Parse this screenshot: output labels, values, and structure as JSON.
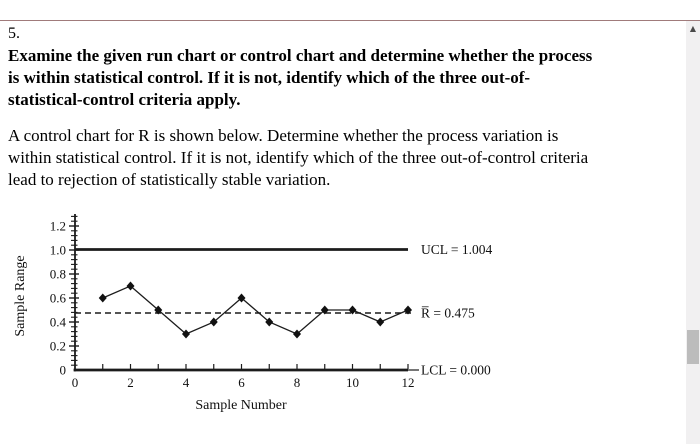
{
  "page": {
    "question_number": "5.",
    "instruction_lines": [
      "Examine the given run chart or control chart and determine whether the process",
      "is within statistical control. If it is not, identify which of the three out-of-",
      "statistical-control criteria apply."
    ],
    "body_lines": [
      "A control chart for R is shown below. Determine whether the process variation is",
      "within statistical control. If it is not, identify which of the three out-of-control criteria",
      "lead to rejection of statistically stable variation."
    ]
  },
  "icons": {
    "scroll_up": "▲"
  },
  "colors": {
    "topbar_top": "#bc7676",
    "topbar_mid": "#eeaaaa",
    "topbar_bottom": "#a07b7b",
    "text": "#000000",
    "chart_ink": "#1c1c1c",
    "scrollbar_track": "#f1f0f1",
    "scrollbar_thumb": "#bcbcbc",
    "background": "#ffffff"
  },
  "chart_data": {
    "type": "line",
    "title": "",
    "xlabel": "Sample Number",
    "ylabel": "Sample Range",
    "x": [
      1,
      2,
      3,
      4,
      5,
      6,
      7,
      8,
      9,
      10,
      11,
      12
    ],
    "values": [
      0.6,
      0.7,
      0.5,
      0.3,
      0.4,
      0.6,
      0.4,
      0.3,
      0.5,
      0.5,
      0.4,
      0.5
    ],
    "limits": {
      "ucl": {
        "value": 1.004,
        "label": "UCL = 1.004"
      },
      "center": {
        "value": 0.475,
        "label": "R̅ = 0.475"
      },
      "lcl": {
        "value": 0.0,
        "label": "LCL = 0.000"
      }
    },
    "xlim": [
      0,
      12
    ],
    "ylim": [
      0,
      1.2
    ],
    "x_major_ticks": [
      0,
      2,
      4,
      6,
      8,
      10,
      12
    ],
    "y_major_ticks": [
      0,
      0.2,
      0.4,
      0.6,
      0.8,
      1.0,
      1.2
    ],
    "marker": "diamond",
    "grid": false,
    "legend": false
  }
}
